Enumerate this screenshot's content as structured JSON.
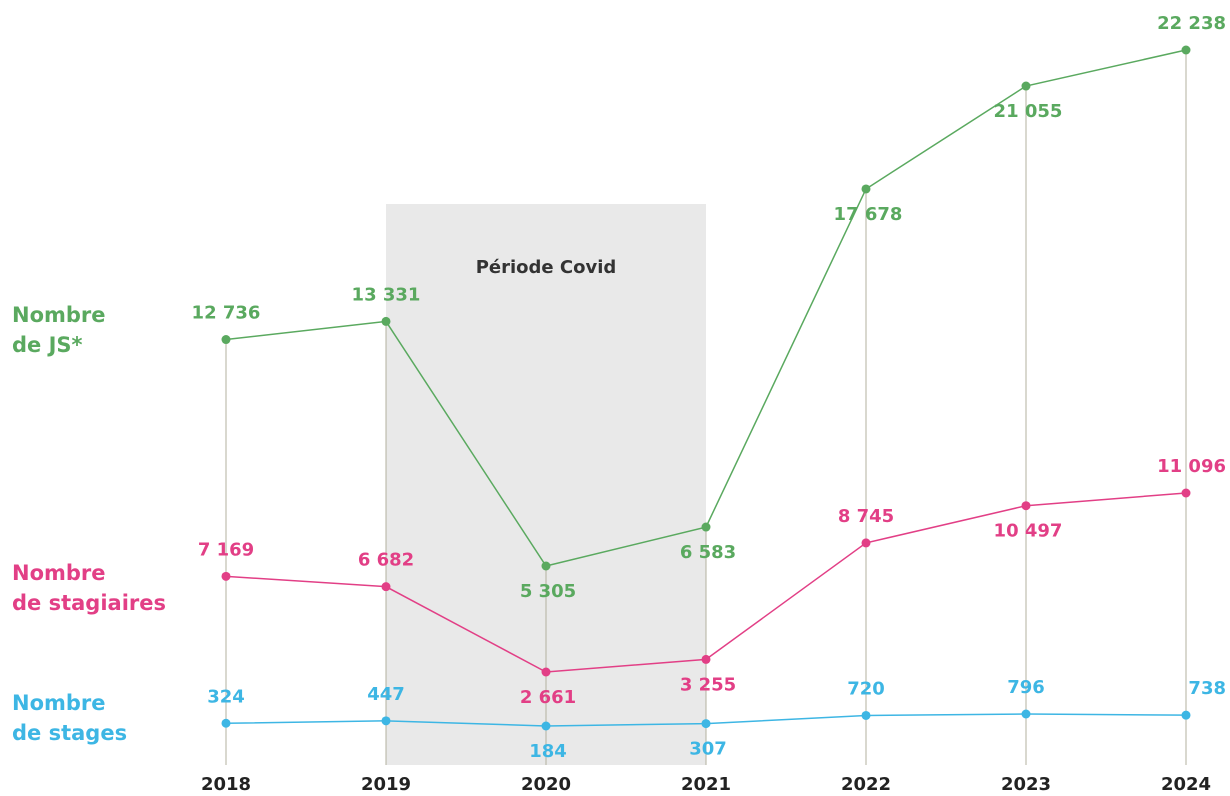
{
  "chart_data": {
    "type": "line",
    "categories": [
      "2018",
      "2019",
      "2020",
      "2021",
      "2022",
      "2023",
      "2024"
    ],
    "annotations": [
      {
        "text": "Période Covid",
        "from": "2019",
        "to": "2021"
      }
    ],
    "series": [
      {
        "name": "Nombre\nde JS*",
        "color": "#5aa95f",
        "values": [
          12736,
          13331,
          5305,
          6583,
          17678,
          21055,
          22238
        ],
        "value_labels": [
          "12 736",
          "13 331",
          "5 305",
          "6 583",
          "17 678",
          "21 055",
          "22 238"
        ]
      },
      {
        "name": "Nombre\nde stagiaires",
        "color": "#e23f86",
        "values": [
          7169,
          6682,
          2661,
          3255,
          8745,
          10497,
          11096
        ],
        "value_labels": [
          "7 169",
          "6 682",
          "2 661",
          "3 255",
          "8 745",
          "10 497",
          "11 096"
        ]
      },
      {
        "name": "Nombre\nde stages",
        "color": "#3db6e4",
        "values": [
          324,
          447,
          184,
          307,
          720,
          796,
          738
        ],
        "value_labels": [
          "324",
          "447",
          "184",
          "307",
          "720",
          "796",
          "738"
        ]
      }
    ]
  }
}
